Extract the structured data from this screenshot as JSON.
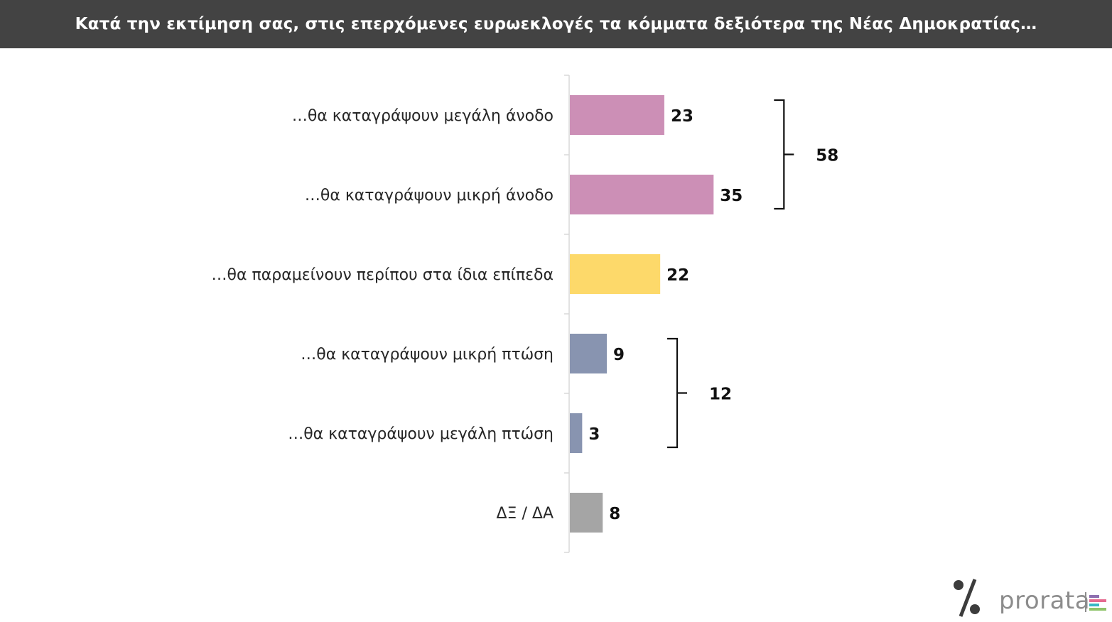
{
  "title": "Κατά την εκτίμηση σας, στις επερχόμενες ευρωεκλογές τα κόμματα δεξιότερα της Νέας Δημοκρατίας…",
  "chart_data": {
    "type": "bar",
    "orientation": "horizontal",
    "categories": [
      "…θα καταγράψουν μεγάλη άνοδο",
      "…θα καταγράψουν μικρή άνοδο",
      "…θα παραμείνουν περίπου στα ίδια επίπεδα",
      "…θα καταγράψουν μικρή πτώση",
      "…θα καταγράψουν μεγάλη πτώση",
      "ΔΞ / ΔΑ"
    ],
    "values": [
      23,
      35,
      22,
      9,
      3,
      8
    ],
    "colors": [
      "#cc8fb6",
      "#cc8fb6",
      "#fdd96a",
      "#8894b0",
      "#8894b0",
      "#a5a5a5"
    ],
    "xlim": [
      0,
      100
    ],
    "grid": false,
    "groups": [
      {
        "label": "58",
        "value": 58,
        "from_index": 0,
        "to_index": 1
      },
      {
        "label": "12",
        "value": 12,
        "from_index": 3,
        "to_index": 4
      }
    ]
  },
  "logo": {
    "symbol": "%",
    "wordmark": "prorata",
    "stripe_colors": [
      "#8e6fb0",
      "#e56a8f",
      "#38b7c5",
      "#8fc46a"
    ]
  }
}
